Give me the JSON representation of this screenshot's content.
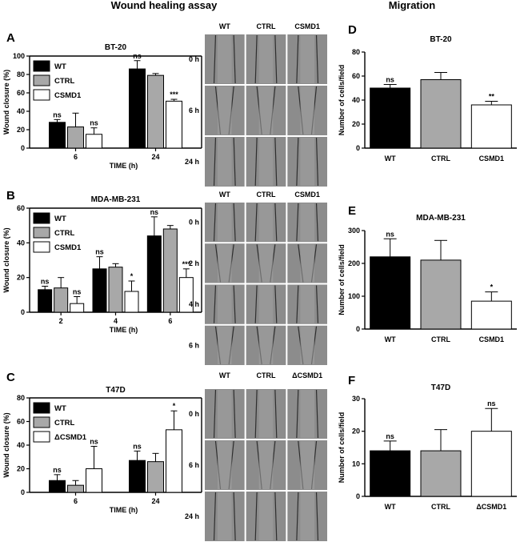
{
  "headers": {
    "left": "Wound healing assay",
    "right": "Migration"
  },
  "legend_labels": {
    "A": [
      "WT",
      "CTRL",
      "CSMD1"
    ],
    "B": [
      "WT",
      "CTRL",
      "CSMD1"
    ],
    "C": [
      "WT",
      "CTRL",
      "ΔCSMD1"
    ]
  },
  "micrographs": [
    {
      "panel": "A",
      "columns": [
        "WT",
        "CTRL",
        "CSMD1"
      ],
      "rows": [
        "0 h",
        "6 h",
        "24 h"
      ]
    },
    {
      "panel": "B",
      "columns": [
        "WT",
        "CTRL",
        "CSMD1"
      ],
      "rows": [
        "0 h",
        "2 h",
        "4 h",
        "6 h"
      ]
    },
    {
      "panel": "C",
      "columns": [
        "WT",
        "CTRL",
        "ΔCSMD1"
      ],
      "rows": [
        "0 h",
        "6 h",
        "24 h"
      ]
    }
  ],
  "colors": {
    "WT": "#000000",
    "CTRL": "#a8a8a8",
    "CSMD1": "#ffffff",
    "micrograph": "#8c8c8c"
  },
  "chart_data": [
    {
      "panel": "A",
      "title": "BT-20",
      "type": "bar",
      "xlabel": "TIME (h)",
      "ylabel": "Wound closure (%)",
      "categories": [
        "6",
        "24"
      ],
      "ylim": [
        0,
        100
      ],
      "yticks": [
        0,
        20,
        40,
        60,
        80,
        100
      ],
      "legend": "top-left",
      "series": [
        {
          "name": "WT",
          "values": [
            28,
            86
          ],
          "errors": [
            3,
            9
          ],
          "sig": [
            "ns",
            "ns"
          ]
        },
        {
          "name": "CTRL",
          "values": [
            23,
            79
          ],
          "errors": [
            15,
            2
          ],
          "sig": [
            "",
            ""
          ]
        },
        {
          "name": "CSMD1",
          "values": [
            15,
            51
          ],
          "errors": [
            7,
            2
          ],
          "sig": [
            "ns",
            "***"
          ]
        }
      ]
    },
    {
      "panel": "B",
      "title": "MDA-MB-231",
      "type": "bar",
      "xlabel": "TIME (h)",
      "ylabel": "Wound closure (%)",
      "categories": [
        "2",
        "4",
        "6"
      ],
      "ylim": [
        0,
        60
      ],
      "yticks": [
        0,
        20,
        40,
        60
      ],
      "legend": "top-left",
      "series": [
        {
          "name": "WT",
          "values": [
            13,
            25,
            44
          ],
          "errors": [
            2,
            7,
            11
          ],
          "sig": [
            "ns",
            "ns",
            "ns"
          ]
        },
        {
          "name": "CTRL",
          "values": [
            14,
            26,
            48
          ],
          "errors": [
            6,
            2,
            2
          ],
          "sig": [
            "",
            "",
            ""
          ]
        },
        {
          "name": "CSMD1",
          "values": [
            5,
            12,
            20
          ],
          "errors": [
            4,
            6,
            5
          ],
          "sig": [
            "ns",
            "*",
            "***"
          ]
        }
      ]
    },
    {
      "panel": "C",
      "title": "T47D",
      "type": "bar",
      "xlabel": "TIME (h)",
      "ylabel": "Wound closure (%)",
      "categories": [
        "6",
        "24"
      ],
      "ylim": [
        0,
        80
      ],
      "yticks": [
        0,
        20,
        40,
        60,
        80
      ],
      "legend": "top-left",
      "series": [
        {
          "name": "WT",
          "values": [
            10,
            27
          ],
          "errors": [
            5,
            8
          ],
          "sig": [
            "ns",
            "ns"
          ]
        },
        {
          "name": "CTRL",
          "values": [
            6,
            26
          ],
          "errors": [
            4,
            7
          ],
          "sig": [
            "",
            ""
          ]
        },
        {
          "name": "ΔCSMD1",
          "values": [
            20,
            53
          ],
          "errors": [
            19,
            16
          ],
          "sig": [
            "ns",
            "*"
          ]
        }
      ]
    },
    {
      "panel": "D",
      "title": "BT-20",
      "type": "bar",
      "xlabel": "",
      "ylabel": "Number of cells/field",
      "categories": [
        "WT",
        "CTRL",
        "CSMD1"
      ],
      "ylim": [
        0,
        80
      ],
      "yticks": [
        0,
        20,
        40,
        60,
        80
      ],
      "values": [
        50,
        57,
        36
      ],
      "errors": [
        3,
        6,
        3
      ],
      "sig": [
        "ns",
        "",
        "**"
      ]
    },
    {
      "panel": "E",
      "title": "MDA-MB-231",
      "type": "bar",
      "xlabel": "",
      "ylabel": "Number of cells/field",
      "categories": [
        "WT",
        "CTRL",
        "CSMD1"
      ],
      "ylim": [
        0,
        300
      ],
      "yticks": [
        0,
        100,
        200,
        300
      ],
      "values": [
        220,
        210,
        85
      ],
      "errors": [
        55,
        60,
        28
      ],
      "sig": [
        "ns",
        "",
        "*"
      ]
    },
    {
      "panel": "F",
      "title": "T47D",
      "type": "bar",
      "xlabel": "",
      "ylabel": "Number of cells/field",
      "categories": [
        "WT",
        "CTRL",
        "ΔCSMD1"
      ],
      "ylim": [
        0,
        30
      ],
      "yticks": [
        0,
        10,
        20,
        30
      ],
      "values": [
        14,
        14,
        20
      ],
      "errors": [
        3,
        6.5,
        7
      ],
      "sig": [
        "ns",
        "",
        "ns"
      ]
    }
  ]
}
